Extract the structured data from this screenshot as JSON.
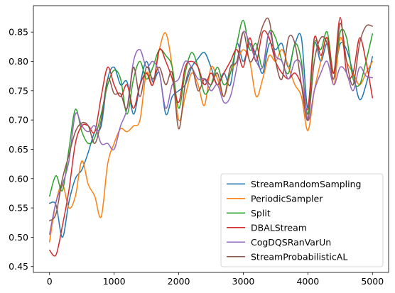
{
  "chart_data": {
    "type": "line",
    "title": "",
    "xlabel": "",
    "ylabel": "",
    "xlim": [
      -250,
      5250
    ],
    "ylim": [
      0.44,
      0.895
    ],
    "xticks": [
      0,
      1000,
      2000,
      3000,
      4000,
      5000
    ],
    "yticks": [
      0.45,
      0.5,
      0.55,
      0.6,
      0.65,
      0.7,
      0.75,
      0.8,
      0.85
    ],
    "xtick_labels": [
      "0",
      "1000",
      "2000",
      "3000",
      "4000",
      "5000"
    ],
    "ytick_labels": [
      "0.45",
      "0.50",
      "0.55",
      "0.60",
      "0.65",
      "0.70",
      "0.75",
      "0.80",
      "0.85"
    ],
    "grid": false,
    "legend_position": "lower-right",
    "x": [
      0,
      100,
      200,
      300,
      400,
      500,
      600,
      700,
      800,
      900,
      1000,
      1100,
      1200,
      1300,
      1400,
      1500,
      1600,
      1700,
      1800,
      1900,
      2000,
      2100,
      2200,
      2300,
      2400,
      2500,
      2600,
      2700,
      2800,
      2900,
      3000,
      3100,
      3200,
      3300,
      3400,
      3500,
      3600,
      3700,
      3800,
      3900,
      4000,
      4100,
      4200,
      4300,
      4400,
      4500,
      4600,
      4700,
      4800,
      4900,
      5000
    ],
    "series": [
      {
        "name": "StreamRandomSampling",
        "color": "#1f77b4",
        "values": [
          0.558,
          0.555,
          0.5,
          0.56,
          0.6,
          0.615,
          0.645,
          0.68,
          0.69,
          0.77,
          0.79,
          0.76,
          0.765,
          0.71,
          0.76,
          0.8,
          0.765,
          0.78,
          0.71,
          0.74,
          0.75,
          0.76,
          0.79,
          0.805,
          0.815,
          0.79,
          0.76,
          0.78,
          0.76,
          0.83,
          0.8,
          0.83,
          0.81,
          0.78,
          0.83,
          0.82,
          0.83,
          0.79,
          0.83,
          0.84,
          0.72,
          0.83,
          0.8,
          0.83,
          0.78,
          0.83,
          0.82,
          0.78,
          0.735,
          0.76,
          0.808
        ]
      },
      {
        "name": "PeriodicSampler",
        "color": "#ff7f0e",
        "values": [
          0.492,
          0.56,
          0.59,
          0.55,
          0.57,
          0.63,
          0.59,
          0.57,
          0.535,
          0.625,
          0.66,
          0.685,
          0.68,
          0.69,
          0.7,
          0.78,
          0.76,
          0.82,
          0.848,
          0.79,
          0.7,
          0.74,
          0.78,
          0.76,
          0.725,
          0.79,
          0.77,
          0.74,
          0.78,
          0.8,
          0.82,
          0.8,
          0.74,
          0.77,
          0.81,
          0.8,
          0.82,
          0.79,
          0.76,
          0.74,
          0.682,
          0.75,
          0.8,
          0.84,
          0.76,
          0.84,
          0.8,
          0.78,
          0.76,
          0.78,
          0.8
        ]
      },
      {
        "name": "Split",
        "color": "#2ca02c",
        "values": [
          0.57,
          0.605,
          0.58,
          0.65,
          0.718,
          0.68,
          0.66,
          0.67,
          0.71,
          0.76,
          0.785,
          0.77,
          0.71,
          0.77,
          0.8,
          0.77,
          0.79,
          0.82,
          0.81,
          0.79,
          0.72,
          0.78,
          0.815,
          0.79,
          0.745,
          0.76,
          0.79,
          0.76,
          0.78,
          0.83,
          0.87,
          0.82,
          0.83,
          0.79,
          0.85,
          0.84,
          0.8,
          0.78,
          0.83,
          0.8,
          0.71,
          0.83,
          0.82,
          0.85,
          0.78,
          0.85,
          0.84,
          0.77,
          0.76,
          0.8,
          0.847
        ]
      },
      {
        "name": "DBALStream",
        "color": "#d62728",
        "values": [
          0.478,
          0.47,
          0.52,
          0.58,
          0.66,
          0.69,
          0.69,
          0.68,
          0.74,
          0.79,
          0.76,
          0.74,
          0.76,
          0.72,
          0.76,
          0.78,
          0.76,
          0.82,
          0.8,
          0.77,
          0.73,
          0.79,
          0.8,
          0.79,
          0.76,
          0.78,
          0.76,
          0.78,
          0.8,
          0.82,
          0.79,
          0.84,
          0.8,
          0.85,
          0.84,
          0.8,
          0.78,
          0.77,
          0.78,
          0.76,
          0.72,
          0.84,
          0.81,
          0.84,
          0.78,
          0.875,
          0.78,
          0.78,
          0.84,
          0.8,
          0.738
        ]
      },
      {
        "name": "CogDQSRanVarUn",
        "color": "#9467bd",
        "values": [
          0.505,
          0.56,
          0.59,
          0.63,
          0.71,
          0.69,
          0.68,
          0.69,
          0.66,
          0.66,
          0.65,
          0.69,
          0.72,
          0.8,
          0.82,
          0.79,
          0.8,
          0.78,
          0.72,
          0.76,
          0.77,
          0.8,
          0.79,
          0.77,
          0.77,
          0.75,
          0.76,
          0.73,
          0.74,
          0.79,
          0.85,
          0.83,
          0.8,
          0.79,
          0.85,
          0.81,
          0.8,
          0.77,
          0.8,
          0.79,
          0.7,
          0.75,
          0.78,
          0.8,
          0.76,
          0.79,
          0.78,
          0.75,
          0.79,
          0.775,
          0.772
        ]
      },
      {
        "name": "StreamProbabilisticAL",
        "color": "#8c564b",
        "values": [
          0.528,
          0.54,
          0.6,
          0.64,
          0.68,
          0.695,
          0.69,
          0.66,
          0.7,
          0.77,
          0.745,
          0.745,
          0.72,
          0.79,
          0.74,
          0.79,
          0.77,
          0.79,
          0.76,
          0.78,
          0.685,
          0.76,
          0.79,
          0.75,
          0.77,
          0.76,
          0.78,
          0.74,
          0.79,
          0.8,
          0.85,
          0.8,
          0.82,
          0.86,
          0.87,
          0.8,
          0.77,
          0.84,
          0.83,
          0.76,
          0.7,
          0.8,
          0.84,
          0.83,
          0.77,
          0.865,
          0.8,
          0.76,
          0.83,
          0.86,
          0.86
        ]
      }
    ]
  }
}
